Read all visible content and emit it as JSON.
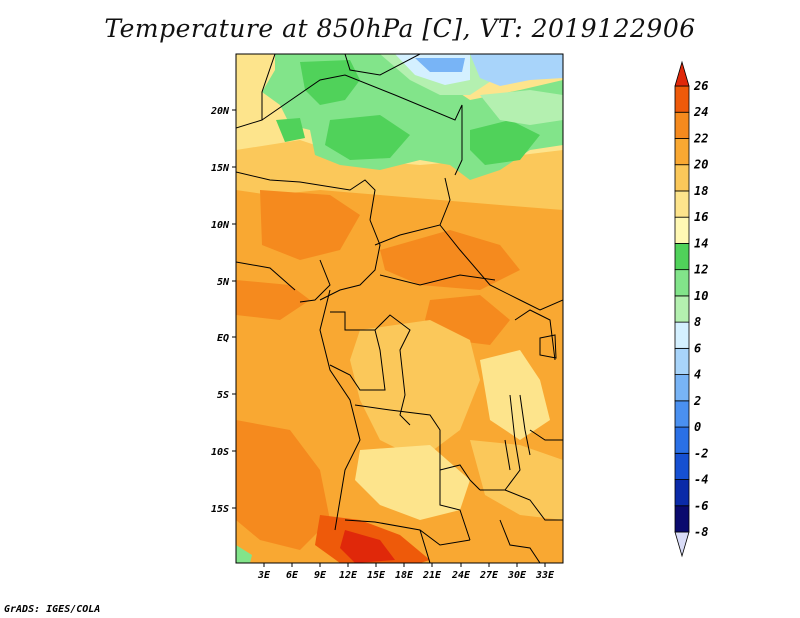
{
  "title": "Temperature at 850hPa [C], VT: 2019122906",
  "footer": "GrADS: IGES/COLA",
  "map": {
    "lat_labels": [
      "20N",
      "15N",
      "10N",
      "5N",
      "EQ",
      "5S",
      "10S",
      "15S"
    ],
    "lon_labels": [
      "3E",
      "6E",
      "9E",
      "12E",
      "15E",
      "18E",
      "21E",
      "24E",
      "27E",
      "30E",
      "33E"
    ]
  },
  "colorbar": {
    "labels": [
      "26",
      "24",
      "22",
      "20",
      "18",
      "16",
      "14",
      "12",
      "10",
      "8",
      "6",
      "4",
      "2",
      "0",
      "-2",
      "-4",
      "-6",
      "-8"
    ],
    "colors": [
      "#d9dcf7",
      "#0a0a6e",
      "#0a2aa8",
      "#1650d2",
      "#2a70e6",
      "#4a90f0",
      "#78b4f6",
      "#a8d4fa",
      "#d4f0ff",
      "#b4f0b0",
      "#82e48a",
      "#50d25a",
      "#fff8b4",
      "#fde48c",
      "#fbc85a",
      "#f9a832",
      "#f58a1e",
      "#ee5a0a",
      "#e0280a"
    ]
  }
}
